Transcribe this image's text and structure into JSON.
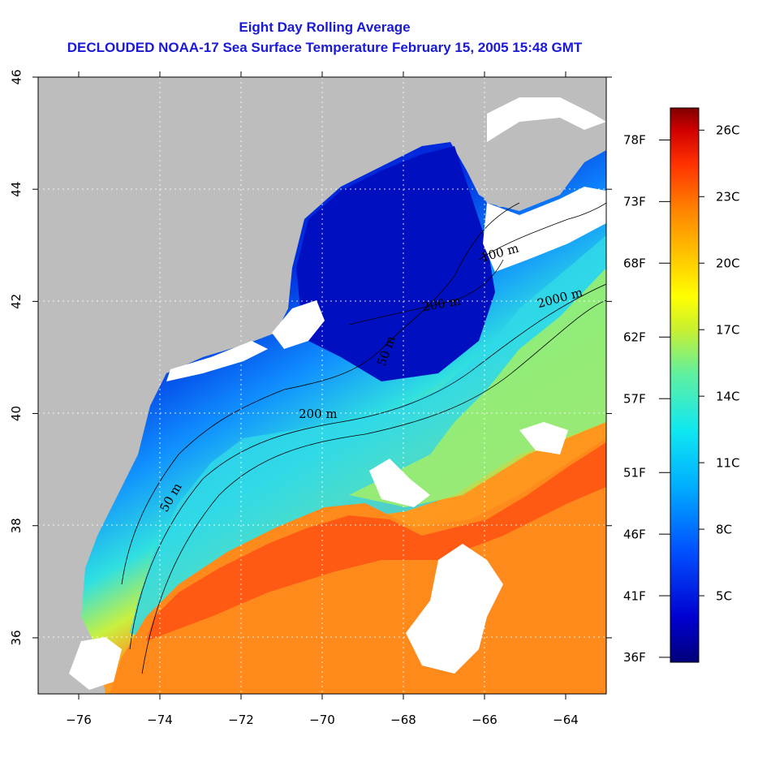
{
  "title_line1": "Eight Day Rolling Average",
  "title_line2": "DECLOUDED NOAA-17 Sea Surface Temperature February 15, 2005 15:48 GMT",
  "map": {
    "lon_range": [
      -77,
      -63
    ],
    "lat_range": [
      35,
      46
    ],
    "lon_ticks": [
      -76,
      -74,
      -72,
      -70,
      -68,
      -66,
      -64
    ],
    "lat_ticks": [
      36,
      38,
      40,
      42,
      44,
      46
    ],
    "gridlines": "dotted",
    "land_color": "#bdbdbd",
    "no_data_color": "#ffffff",
    "contour_labels": [
      "50 m",
      "50 m",
      "200 m",
      "200 m",
      "100 m",
      "2000 m",
      "50 m"
    ]
  },
  "colorbar": {
    "placement": "right",
    "range_c": [
      2,
      27
    ],
    "celsius_labels": [
      "26C",
      "23C",
      "20C",
      "17C",
      "14C",
      "11C",
      "8C",
      "5C"
    ],
    "celsius_values": [
      26,
      23,
      20,
      17,
      14,
      11,
      8,
      5
    ],
    "fahrenheit_labels": [
      "78F",
      "73F",
      "68F",
      "62F",
      "57F",
      "51F",
      "46F",
      "41F",
      "36F"
    ],
    "fahrenheit_values": [
      78,
      73,
      68,
      62,
      57,
      51,
      46,
      41,
      36
    ]
  },
  "colors": {
    "title": "#1a1ad6",
    "deep_blue": "#0000c8",
    "cyan": "#20e0e8",
    "yellow": "#f0f000",
    "orange": "#ff8c1a",
    "red": "#ff3c00"
  }
}
